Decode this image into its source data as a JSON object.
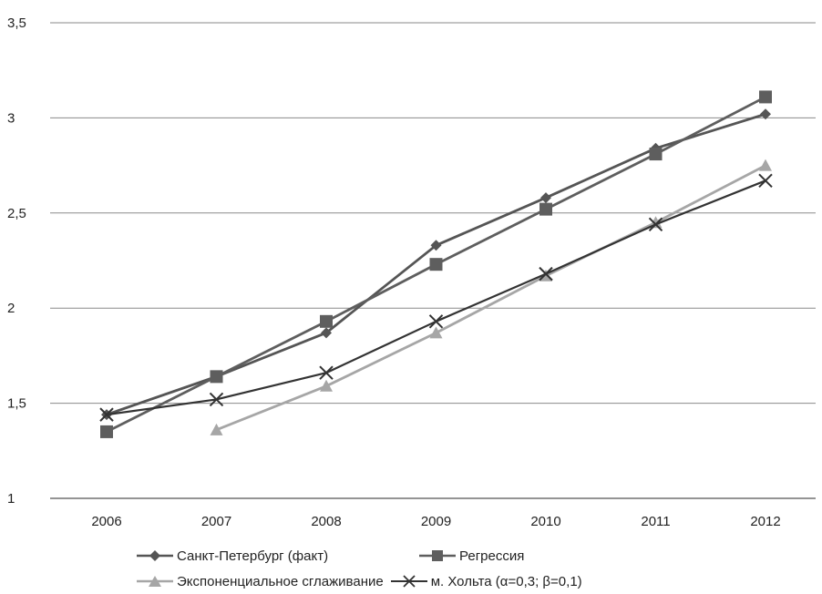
{
  "chart_data": {
    "type": "line",
    "title": "",
    "xlabel": "",
    "ylabel": "",
    "categories": [
      "2006",
      "2007",
      "2008",
      "2009",
      "2010",
      "2011",
      "2012"
    ],
    "y_ticks": [
      "1",
      "1,5",
      "2",
      "2,5",
      "3",
      "3,5"
    ],
    "ylim": [
      1,
      3.5
    ],
    "grid": true,
    "legend_position": "bottom",
    "series": [
      {
        "name": "Санкт-Петербург (факт)",
        "color": "#555555",
        "marker": "diamond",
        "values": [
          1.44,
          1.64,
          1.87,
          2.33,
          2.58,
          2.84,
          3.02
        ]
      },
      {
        "name": "Регрессия",
        "color": "#5e5e5e",
        "marker": "square",
        "values": [
          1.35,
          1.64,
          1.93,
          2.23,
          2.52,
          2.81,
          3.11
        ]
      },
      {
        "name": "Экспоненциальное сглаживание",
        "color": "#a6a6a6",
        "marker": "triangle",
        "values": [
          null,
          1.36,
          1.59,
          1.87,
          2.17,
          2.45,
          2.75
        ]
      },
      {
        "name": "м. Хольта (α=0,3; β=0,1)",
        "color": "#333333",
        "marker": "x",
        "values": [
          1.44,
          1.52,
          1.66,
          1.93,
          2.18,
          2.44,
          2.67
        ]
      }
    ]
  }
}
